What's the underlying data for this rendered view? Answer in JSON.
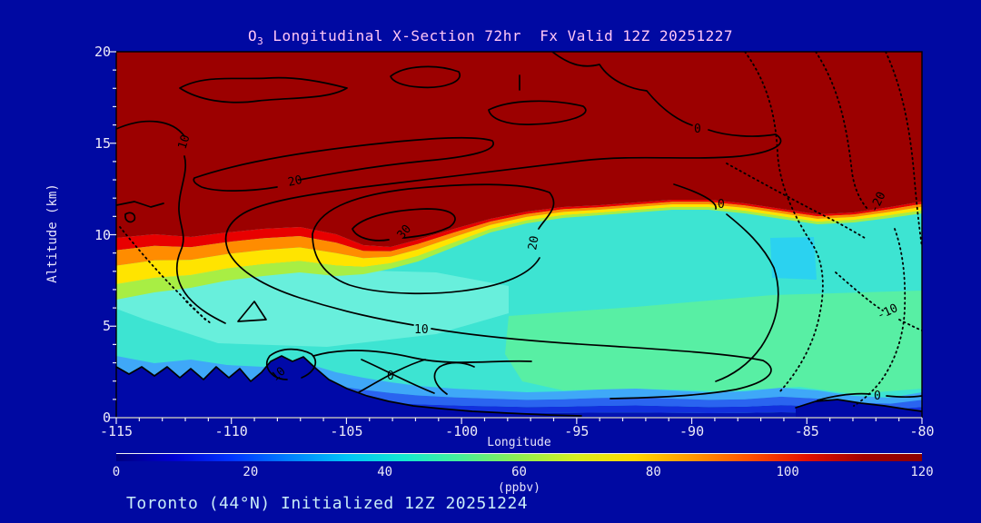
{
  "window": {
    "background": "#0009a2"
  },
  "title": {
    "prefix": "O",
    "sub": "3",
    "rest": " Longitudinal X-Section 72hr  Fx Valid 12Z 20251227",
    "color": "#ffc6f6"
  },
  "footer": {
    "text": "Toronto (44°N) Initialized 12Z 20251224",
    "color": "#c9ecf8"
  },
  "chart_data": {
    "type": "contour",
    "title": "O3 Longitudinal X-Section 72hr  Fx Valid 12Z 20251227",
    "xlabel": "Longitude",
    "ylabel": "Altitude (km)",
    "xlim": [
      -115,
      -80
    ],
    "ylim": [
      0,
      20
    ],
    "x_ticks": [
      -115,
      -110,
      -105,
      -100,
      -95,
      -90,
      -85,
      -80
    ],
    "y_ticks": [
      0,
      5,
      10,
      15,
      20
    ],
    "grid": false,
    "colorbar": {
      "label": "(ppbv)",
      "min": 0,
      "max": 120,
      "ticks": [
        0,
        20,
        40,
        60,
        80,
        100,
        120
      ],
      "palette": [
        "#000080",
        "#0000d0",
        "#0034ff",
        "#0080ff",
        "#00c4f8",
        "#14e8d0",
        "#48f098",
        "#90f050",
        "#d8ee20",
        "#ffd800",
        "#ff9800",
        "#ff5000",
        "#e01000",
        "#a00000",
        "#8b0000"
      ]
    },
    "fill_field": {
      "units": "ppbv",
      "note": "Ozone mixing ratio estimated from fill colors; 125 means saturated dark red (>=120).",
      "longitudes_deg": [
        -115,
        -110,
        -105,
        -100,
        -95,
        -90,
        -85,
        -80
      ],
      "altitudes_km": [
        0,
        2.5,
        5,
        7.5,
        10,
        12.5,
        15,
        17.5,
        20
      ],
      "values_ppbv": [
        [
          8,
          5,
          10,
          15,
          18,
          15,
          10,
          6
        ],
        [
          25,
          22,
          28,
          35,
          38,
          35,
          30,
          22
        ],
        [
          42,
          45,
          45,
          48,
          50,
          52,
          48,
          42
        ],
        [
          52,
          58,
          52,
          50,
          50,
          55,
          52,
          48
        ],
        [
          95,
          80,
          88,
          98,
          55,
          50,
          48,
          46
        ],
        [
          125,
          125,
          125,
          125,
          125,
          120,
          105,
          112
        ],
        [
          125,
          125,
          125,
          125,
          125,
          125,
          125,
          125
        ],
        [
          125,
          125,
          125,
          125,
          125,
          125,
          125,
          125
        ],
        [
          125,
          125,
          125,
          125,
          125,
          125,
          125,
          125
        ]
      ]
    },
    "overlay_contours": {
      "note": "Black overlay contours; solid = positive, dotted = negative.",
      "labeled_levels": [
        -20,
        -10,
        0,
        10,
        20,
        30
      ],
      "labels": [
        {
          "text": "10",
          "lon_deg": -112.0,
          "alt_km": 14.9
        },
        {
          "text": "20",
          "lon_deg": -107.2,
          "alt_km": 12.9
        },
        {
          "text": "30",
          "lon_deg": -102.2,
          "alt_km": 10.0
        },
        {
          "text": "20",
          "lon_deg": -96.5,
          "alt_km": 9.5
        },
        {
          "text": "0",
          "lon_deg": -89.7,
          "alt_km": 15.8
        },
        {
          "text": "0",
          "lon_deg": -88.6,
          "alt_km": 11.7
        },
        {
          "text": "10",
          "lon_deg": -101.7,
          "alt_km": 4.9
        },
        {
          "text": "10",
          "lon_deg": -107.7,
          "alt_km": 2.3
        },
        {
          "text": "0",
          "lon_deg": -103.0,
          "alt_km": 2.4
        },
        {
          "text": "-20",
          "lon_deg": -81.5,
          "alt_km": 11.6
        },
        {
          "text": "-10",
          "lon_deg": -81.1,
          "alt_km": 5.8
        },
        {
          "text": "0",
          "lon_deg": -81.9,
          "alt_km": 1.2
        }
      ]
    }
  }
}
